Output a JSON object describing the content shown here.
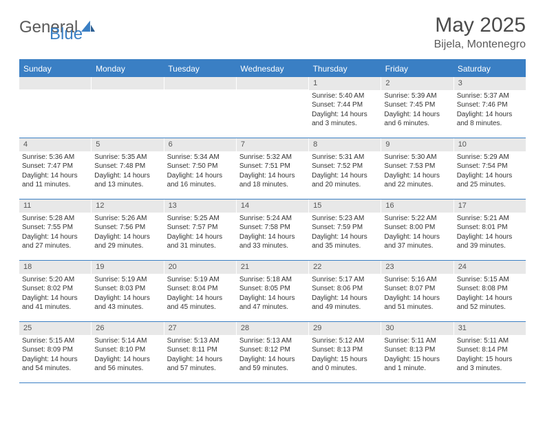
{
  "logo": {
    "general": "General",
    "blue": "Blue"
  },
  "title": "May 2025",
  "location": "Bijela, Montenegro",
  "headerColor": "#3a7fc4",
  "dayHeaderBg": "#3a7fc4",
  "dayNumberBg": "#e8e8e8",
  "dayHeaders": [
    "Sunday",
    "Monday",
    "Tuesday",
    "Wednesday",
    "Thursday",
    "Friday",
    "Saturday"
  ],
  "weeks": [
    [
      {
        "n": "",
        "sr": "",
        "ss": "",
        "dl": ""
      },
      {
        "n": "",
        "sr": "",
        "ss": "",
        "dl": ""
      },
      {
        "n": "",
        "sr": "",
        "ss": "",
        "dl": ""
      },
      {
        "n": "",
        "sr": "",
        "ss": "",
        "dl": ""
      },
      {
        "n": "1",
        "sr": "Sunrise: 5:40 AM",
        "ss": "Sunset: 7:44 PM",
        "dl": "Daylight: 14 hours and 3 minutes."
      },
      {
        "n": "2",
        "sr": "Sunrise: 5:39 AM",
        "ss": "Sunset: 7:45 PM",
        "dl": "Daylight: 14 hours and 6 minutes."
      },
      {
        "n": "3",
        "sr": "Sunrise: 5:37 AM",
        "ss": "Sunset: 7:46 PM",
        "dl": "Daylight: 14 hours and 8 minutes."
      }
    ],
    [
      {
        "n": "4",
        "sr": "Sunrise: 5:36 AM",
        "ss": "Sunset: 7:47 PM",
        "dl": "Daylight: 14 hours and 11 minutes."
      },
      {
        "n": "5",
        "sr": "Sunrise: 5:35 AM",
        "ss": "Sunset: 7:48 PM",
        "dl": "Daylight: 14 hours and 13 minutes."
      },
      {
        "n": "6",
        "sr": "Sunrise: 5:34 AM",
        "ss": "Sunset: 7:50 PM",
        "dl": "Daylight: 14 hours and 16 minutes."
      },
      {
        "n": "7",
        "sr": "Sunrise: 5:32 AM",
        "ss": "Sunset: 7:51 PM",
        "dl": "Daylight: 14 hours and 18 minutes."
      },
      {
        "n": "8",
        "sr": "Sunrise: 5:31 AM",
        "ss": "Sunset: 7:52 PM",
        "dl": "Daylight: 14 hours and 20 minutes."
      },
      {
        "n": "9",
        "sr": "Sunrise: 5:30 AM",
        "ss": "Sunset: 7:53 PM",
        "dl": "Daylight: 14 hours and 22 minutes."
      },
      {
        "n": "10",
        "sr": "Sunrise: 5:29 AM",
        "ss": "Sunset: 7:54 PM",
        "dl": "Daylight: 14 hours and 25 minutes."
      }
    ],
    [
      {
        "n": "11",
        "sr": "Sunrise: 5:28 AM",
        "ss": "Sunset: 7:55 PM",
        "dl": "Daylight: 14 hours and 27 minutes."
      },
      {
        "n": "12",
        "sr": "Sunrise: 5:26 AM",
        "ss": "Sunset: 7:56 PM",
        "dl": "Daylight: 14 hours and 29 minutes."
      },
      {
        "n": "13",
        "sr": "Sunrise: 5:25 AM",
        "ss": "Sunset: 7:57 PM",
        "dl": "Daylight: 14 hours and 31 minutes."
      },
      {
        "n": "14",
        "sr": "Sunrise: 5:24 AM",
        "ss": "Sunset: 7:58 PM",
        "dl": "Daylight: 14 hours and 33 minutes."
      },
      {
        "n": "15",
        "sr": "Sunrise: 5:23 AM",
        "ss": "Sunset: 7:59 PM",
        "dl": "Daylight: 14 hours and 35 minutes."
      },
      {
        "n": "16",
        "sr": "Sunrise: 5:22 AM",
        "ss": "Sunset: 8:00 PM",
        "dl": "Daylight: 14 hours and 37 minutes."
      },
      {
        "n": "17",
        "sr": "Sunrise: 5:21 AM",
        "ss": "Sunset: 8:01 PM",
        "dl": "Daylight: 14 hours and 39 minutes."
      }
    ],
    [
      {
        "n": "18",
        "sr": "Sunrise: 5:20 AM",
        "ss": "Sunset: 8:02 PM",
        "dl": "Daylight: 14 hours and 41 minutes."
      },
      {
        "n": "19",
        "sr": "Sunrise: 5:19 AM",
        "ss": "Sunset: 8:03 PM",
        "dl": "Daylight: 14 hours and 43 minutes."
      },
      {
        "n": "20",
        "sr": "Sunrise: 5:19 AM",
        "ss": "Sunset: 8:04 PM",
        "dl": "Daylight: 14 hours and 45 minutes."
      },
      {
        "n": "21",
        "sr": "Sunrise: 5:18 AM",
        "ss": "Sunset: 8:05 PM",
        "dl": "Daylight: 14 hours and 47 minutes."
      },
      {
        "n": "22",
        "sr": "Sunrise: 5:17 AM",
        "ss": "Sunset: 8:06 PM",
        "dl": "Daylight: 14 hours and 49 minutes."
      },
      {
        "n": "23",
        "sr": "Sunrise: 5:16 AM",
        "ss": "Sunset: 8:07 PM",
        "dl": "Daylight: 14 hours and 51 minutes."
      },
      {
        "n": "24",
        "sr": "Sunrise: 5:15 AM",
        "ss": "Sunset: 8:08 PM",
        "dl": "Daylight: 14 hours and 52 minutes."
      }
    ],
    [
      {
        "n": "25",
        "sr": "Sunrise: 5:15 AM",
        "ss": "Sunset: 8:09 PM",
        "dl": "Daylight: 14 hours and 54 minutes."
      },
      {
        "n": "26",
        "sr": "Sunrise: 5:14 AM",
        "ss": "Sunset: 8:10 PM",
        "dl": "Daylight: 14 hours and 56 minutes."
      },
      {
        "n": "27",
        "sr": "Sunrise: 5:13 AM",
        "ss": "Sunset: 8:11 PM",
        "dl": "Daylight: 14 hours and 57 minutes."
      },
      {
        "n": "28",
        "sr": "Sunrise: 5:13 AM",
        "ss": "Sunset: 8:12 PM",
        "dl": "Daylight: 14 hours and 59 minutes."
      },
      {
        "n": "29",
        "sr": "Sunrise: 5:12 AM",
        "ss": "Sunset: 8:13 PM",
        "dl": "Daylight: 15 hours and 0 minutes."
      },
      {
        "n": "30",
        "sr": "Sunrise: 5:11 AM",
        "ss": "Sunset: 8:13 PM",
        "dl": "Daylight: 15 hours and 1 minute."
      },
      {
        "n": "31",
        "sr": "Sunrise: 5:11 AM",
        "ss": "Sunset: 8:14 PM",
        "dl": "Daylight: 15 hours and 3 minutes."
      }
    ]
  ]
}
